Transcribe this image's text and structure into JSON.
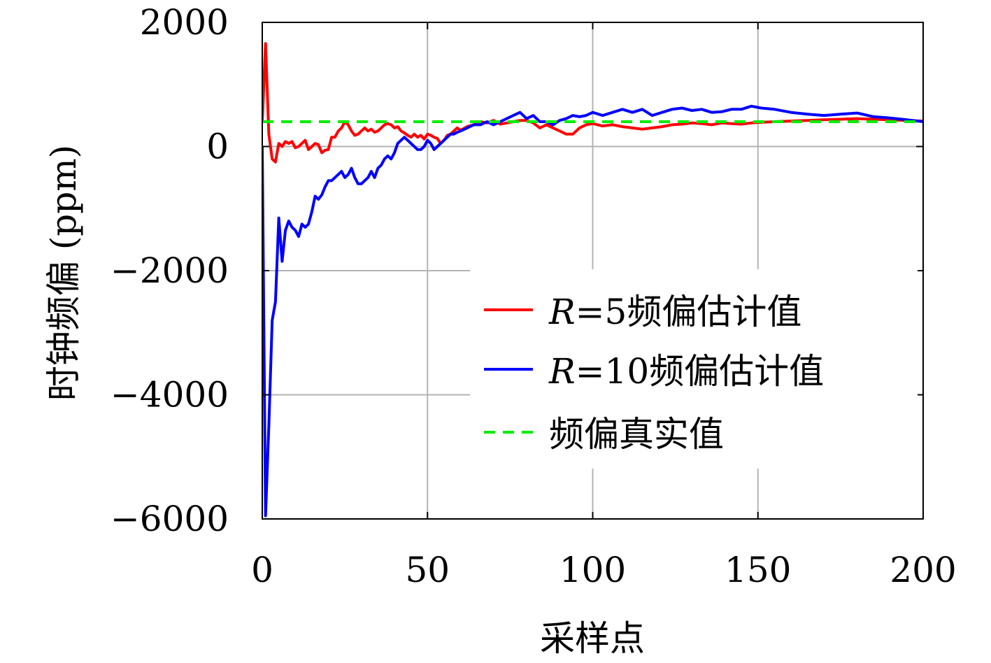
{
  "chart_data": {
    "type": "line",
    "title": "",
    "xlabel": "采样点",
    "ylabel": "时钟频偏 (ppm)",
    "xlim": [
      0,
      200
    ],
    "ylim": [
      -6000,
      2000
    ],
    "xticks": [
      0,
      50,
      100,
      150,
      200
    ],
    "yticks": [
      2000,
      0,
      -2000,
      -4000,
      -6000
    ],
    "xtick_labels": [
      "0",
      "50",
      "100",
      "150",
      "200"
    ],
    "ytick_labels": [
      "2000",
      "0",
      "−2000",
      "−4000",
      "−6000"
    ],
    "grid": true,
    "legend_position": "lower-right",
    "series": [
      {
        "name": "R=5频偏估计值",
        "legend_prefix": "R",
        "legend_suffix": "=5频偏估计值",
        "color": "#ff0000",
        "style": "solid",
        "x": [
          0,
          1,
          2,
          3,
          4,
          5,
          6,
          7,
          8,
          9,
          10,
          11,
          12,
          13,
          14,
          15,
          16,
          17,
          18,
          19,
          20,
          21,
          22,
          23,
          24,
          25,
          26,
          27,
          28,
          29,
          30,
          31,
          32,
          33,
          34,
          35,
          36,
          37,
          38,
          39,
          40,
          41,
          42,
          43,
          44,
          45,
          46,
          47,
          48,
          49,
          50,
          51,
          52,
          53,
          54,
          55,
          56,
          57,
          58,
          59,
          60,
          62,
          64,
          66,
          68,
          70,
          72,
          74,
          76,
          78,
          80,
          82,
          84,
          86,
          88,
          90,
          92,
          94,
          96,
          98,
          100,
          103,
          106,
          109,
          112,
          115,
          118,
          121,
          124,
          127,
          130,
          133,
          136,
          139,
          142,
          145,
          148,
          151,
          155,
          160,
          165,
          170,
          175,
          180,
          185,
          190,
          195,
          200
        ],
        "y": [
          380,
          1660,
          200,
          -200,
          -250,
          50,
          0,
          80,
          50,
          80,
          -20,
          0,
          50,
          100,
          -50,
          0,
          50,
          30,
          -100,
          -60,
          -50,
          150,
          150,
          250,
          300,
          400,
          350,
          250,
          180,
          200,
          250,
          300,
          250,
          280,
          230,
          250,
          300,
          350,
          370,
          350,
          300,
          320,
          250,
          220,
          180,
          150,
          200,
          150,
          180,
          120,
          200,
          180,
          150,
          130,
          50,
          100,
          180,
          200,
          250,
          300,
          260,
          320,
          350,
          400,
          380,
          420,
          360,
          380,
          400,
          420,
          420,
          380,
          300,
          350,
          300,
          250,
          200,
          200,
          300,
          350,
          370,
          330,
          350,
          320,
          300,
          280,
          300,
          320,
          350,
          360,
          380,
          370,
          350,
          380,
          370,
          360,
          380,
          390,
          400,
          410,
          420,
          430,
          440,
          450,
          440,
          430,
          420,
          410
        ]
      },
      {
        "name": "R=10频偏估计值",
        "legend_prefix": "R",
        "legend_suffix": "=10频偏估计值",
        "color": "#0000ff",
        "style": "solid",
        "x": [
          0,
          1,
          2,
          3,
          4,
          5,
          6,
          7,
          8,
          9,
          10,
          11,
          12,
          13,
          14,
          15,
          16,
          17,
          18,
          19,
          20,
          21,
          22,
          23,
          24,
          25,
          26,
          27,
          28,
          29,
          30,
          31,
          32,
          33,
          34,
          35,
          36,
          37,
          38,
          39,
          40,
          41,
          42,
          43,
          44,
          45,
          46,
          47,
          48,
          49,
          50,
          51,
          52,
          53,
          54,
          55,
          56,
          57,
          58,
          59,
          60,
          62,
          64,
          66,
          68,
          70,
          72,
          74,
          76,
          78,
          80,
          82,
          84,
          86,
          88,
          90,
          92,
          94,
          96,
          98,
          100,
          103,
          106,
          109,
          112,
          115,
          118,
          121,
          124,
          127,
          130,
          133,
          136,
          139,
          142,
          145,
          148,
          151,
          155,
          160,
          165,
          170,
          175,
          180,
          185,
          190,
          195,
          200
        ],
        "y": [
          0,
          -5950,
          -4500,
          -2800,
          -2500,
          -1150,
          -1850,
          -1350,
          -1200,
          -1300,
          -1350,
          -1450,
          -1250,
          -1300,
          -1250,
          -1050,
          -800,
          -850,
          -780,
          -650,
          -550,
          -550,
          -500,
          -450,
          -400,
          -500,
          -450,
          -350,
          -500,
          -600,
          -600,
          -550,
          -500,
          -400,
          -500,
          -350,
          -300,
          -200,
          -150,
          -200,
          -100,
          50,
          100,
          150,
          100,
          50,
          0,
          -50,
          -50,
          0,
          100,
          50,
          -50,
          0,
          50,
          100,
          150,
          200,
          200,
          230,
          250,
          300,
          350,
          350,
          400,
          350,
          400,
          450,
          500,
          550,
          450,
          500,
          400,
          400,
          350,
          420,
          450,
          500,
          480,
          500,
          550,
          500,
          550,
          600,
          550,
          600,
          500,
          550,
          600,
          620,
          580,
          600,
          550,
          560,
          600,
          600,
          650,
          620,
          600,
          550,
          520,
          500,
          520,
          540,
          480,
          460,
          430,
          400
        ]
      },
      {
        "name": "频偏真实值",
        "color": "#00ee00",
        "style": "dashed",
        "x": [
          0,
          200
        ],
        "y": [
          400,
          400
        ]
      }
    ]
  }
}
